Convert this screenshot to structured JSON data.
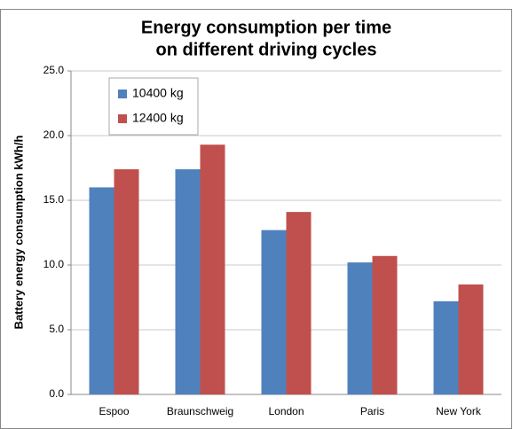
{
  "chart_data": {
    "type": "bar",
    "title": [
      "Energy consumption per time",
      "on different driving cycles"
    ],
    "y_label": "Battery energy consumption kWh/h",
    "categories": [
      "Espoo",
      "Braunschweig",
      "London",
      "Paris",
      "New York"
    ],
    "series": [
      {
        "name": "10400 kg",
        "color": "#4f81bd",
        "values": [
          16.0,
          17.4,
          12.7,
          10.2,
          7.2
        ]
      },
      {
        "name": "12400 kg",
        "color": "#c0504d",
        "values": [
          17.4,
          19.3,
          14.1,
          10.7,
          8.5
        ]
      }
    ],
    "ylim": [
      0,
      25
    ],
    "yticks": [
      {
        "value": 0,
        "label": "0.0"
      },
      {
        "value": 5,
        "label": "5.0"
      },
      {
        "value": 10,
        "label": "10.0"
      },
      {
        "value": 15,
        "label": "15.0"
      },
      {
        "value": 20,
        "label": "20.0"
      },
      {
        "value": 25,
        "label": "25.0"
      }
    ],
    "grid": true
  }
}
